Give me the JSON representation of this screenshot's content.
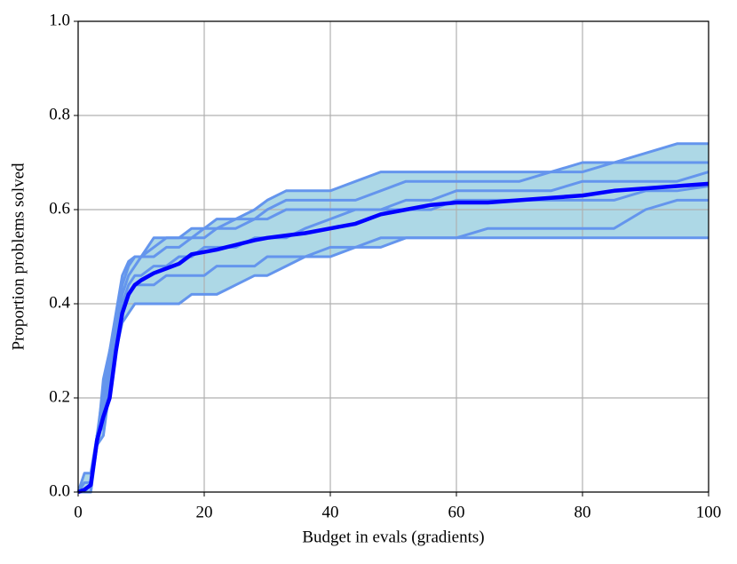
{
  "chart_data": {
    "type": "line",
    "xlabel": "Budget in evals (gradients)",
    "ylabel": "Proportion problems solved",
    "x": [
      0,
      1,
      2,
      3,
      4,
      5,
      6,
      7,
      8,
      9,
      10,
      12,
      14,
      16,
      18,
      20,
      22,
      25,
      28,
      30,
      33,
      36,
      40,
      44,
      48,
      52,
      56,
      60,
      65,
      70,
      75,
      80,
      85,
      90,
      95,
      100
    ],
    "series": [
      {
        "color": "#6495ed",
        "values": [
          0,
          0.04,
          0.04,
          0.12,
          0.2,
          0.3,
          0.38,
          0.46,
          0.49,
          0.5,
          0.5,
          0.54,
          0.54,
          0.54,
          0.56,
          0.56,
          0.58,
          0.58,
          0.6,
          0.62,
          0.64,
          0.64,
          0.64,
          0.66,
          0.68,
          0.68,
          0.68,
          0.68,
          0.68,
          0.68,
          0.68,
          0.68,
          0.7,
          0.72,
          0.74,
          0.74
        ]
      },
      {
        "color": "#6495ed",
        "values": [
          0,
          0.02,
          0.02,
          0.12,
          0.22,
          0.28,
          0.36,
          0.44,
          0.48,
          0.5,
          0.5,
          0.52,
          0.54,
          0.54,
          0.54,
          0.54,
          0.56,
          0.58,
          0.58,
          0.6,
          0.62,
          0.62,
          0.62,
          0.62,
          0.64,
          0.66,
          0.66,
          0.66,
          0.66,
          0.66,
          0.68,
          0.7,
          0.7,
          0.7,
          0.7,
          0.7
        ]
      },
      {
        "color": "#6495ed",
        "values": [
          0,
          0,
          0.02,
          0.1,
          0.24,
          0.3,
          0.36,
          0.42,
          0.46,
          0.48,
          0.5,
          0.5,
          0.52,
          0.52,
          0.54,
          0.56,
          0.56,
          0.56,
          0.58,
          0.58,
          0.6,
          0.6,
          0.6,
          0.6,
          0.6,
          0.62,
          0.62,
          0.64,
          0.64,
          0.64,
          0.64,
          0.66,
          0.66,
          0.66,
          0.66,
          0.68
        ]
      },
      {
        "color": "#6495ed",
        "values": [
          0,
          0,
          0.02,
          0.12,
          0.18,
          0.26,
          0.34,
          0.4,
          0.44,
          0.46,
          0.46,
          0.48,
          0.48,
          0.5,
          0.5,
          0.52,
          0.52,
          0.52,
          0.54,
          0.54,
          0.54,
          0.56,
          0.58,
          0.6,
          0.6,
          0.6,
          0.6,
          0.62,
          0.62,
          0.62,
          0.62,
          0.62,
          0.62,
          0.64,
          0.64,
          0.65
        ]
      },
      {
        "color": "#6495ed",
        "values": [
          0,
          0,
          0,
          0.12,
          0.14,
          0.24,
          0.32,
          0.38,
          0.42,
          0.44,
          0.44,
          0.44,
          0.46,
          0.46,
          0.46,
          0.46,
          0.48,
          0.48,
          0.48,
          0.5,
          0.5,
          0.5,
          0.5,
          0.52,
          0.52,
          0.54,
          0.54,
          0.54,
          0.56,
          0.56,
          0.56,
          0.56,
          0.56,
          0.6,
          0.62,
          0.62
        ]
      },
      {
        "color": "#6495ed",
        "values": [
          0,
          0,
          0,
          0.1,
          0.12,
          0.22,
          0.3,
          0.36,
          0.38,
          0.4,
          0.4,
          0.4,
          0.4,
          0.4,
          0.42,
          0.42,
          0.42,
          0.44,
          0.46,
          0.46,
          0.48,
          0.5,
          0.52,
          0.52,
          0.54,
          0.54,
          0.54,
          0.54,
          0.54,
          0.54,
          0.54,
          0.54,
          0.54,
          0.54,
          0.54,
          0.54
        ]
      },
      {
        "color": "#0000ff",
        "values": [
          0,
          0.005,
          0.015,
          0.11,
          0.16,
          0.2,
          0.3,
          0.38,
          0.42,
          0.44,
          0.45,
          0.465,
          0.475,
          0.485,
          0.505,
          0.51,
          0.515,
          0.525,
          0.535,
          0.54,
          0.545,
          0.55,
          0.56,
          0.57,
          0.59,
          0.6,
          0.61,
          0.615,
          0.615,
          0.62,
          0.625,
          0.63,
          0.64,
          0.645,
          0.65,
          0.655
        ]
      }
    ],
    "band_color": "#add8e6",
    "xlim": [
      0,
      100
    ],
    "ylim": [
      0,
      1
    ],
    "xticks": [
      0,
      20,
      40,
      60,
      80,
      100
    ],
    "yticks": [
      {
        "value": 0,
        "label": "0.0"
      },
      {
        "value": 0.2,
        "label": "0.2"
      },
      {
        "value": 0.4,
        "label": "0.4"
      },
      {
        "value": 0.6,
        "label": "0.6"
      },
      {
        "value": 0.8,
        "label": "0.8"
      },
      {
        "value": 1,
        "label": "1.0"
      }
    ],
    "grid": true
  }
}
